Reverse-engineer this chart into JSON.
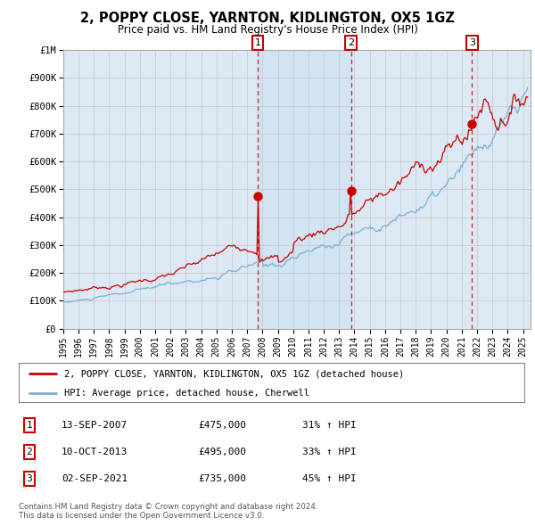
{
  "title": "2, POPPY CLOSE, YARNTON, KIDLINGTON, OX5 1GZ",
  "subtitle": "Price paid vs. HM Land Registry's House Price Index (HPI)",
  "background_color": "#ffffff",
  "plot_bg_color": "#dce9f5",
  "grid_color": "#cccccc",
  "red_line_color": "#cc0000",
  "blue_line_color": "#7bafd4",
  "sale_points": [
    {
      "date_num": 2007.7,
      "price": 475000,
      "label": "1"
    },
    {
      "date_num": 2013.78,
      "price": 495000,
      "label": "2"
    },
    {
      "date_num": 2021.67,
      "price": 735000,
      "label": "3"
    }
  ],
  "sale_annotations": [
    {
      "label": "1",
      "date": "13-SEP-2007",
      "price": "£475,000",
      "hpi": "31% ↑ HPI"
    },
    {
      "label": "2",
      "date": "10-OCT-2013",
      "price": "£495,000",
      "hpi": "33% ↑ HPI"
    },
    {
      "label": "3",
      "date": "02-SEP-2021",
      "price": "£735,000",
      "hpi": "45% ↑ HPI"
    }
  ],
  "legend_red": "2, POPPY CLOSE, YARNTON, KIDLINGTON, OX5 1GZ (detached house)",
  "legend_blue": "HPI: Average price, detached house, Cherwell",
  "footnote": "Contains HM Land Registry data © Crown copyright and database right 2024.\nThis data is licensed under the Open Government Licence v3.0.",
  "ylim": [
    0,
    1000000
  ],
  "xmin": 1995.0,
  "xmax": 2025.5,
  "ytick_vals": [
    0,
    100000,
    200000,
    300000,
    400000,
    500000,
    600000,
    700000,
    800000,
    900000,
    1000000
  ],
  "ytick_labels": [
    "£0",
    "£100K",
    "£200K",
    "£300K",
    "£400K",
    "£500K",
    "£600K",
    "£700K",
    "£800K",
    "£900K",
    "£1M"
  ],
  "xtick_vals": [
    1995,
    1996,
    1997,
    1998,
    1999,
    2000,
    2001,
    2002,
    2003,
    2004,
    2005,
    2006,
    2007,
    2008,
    2009,
    2010,
    2011,
    2012,
    2013,
    2014,
    2015,
    2016,
    2017,
    2018,
    2019,
    2020,
    2021,
    2022,
    2023,
    2024,
    2025
  ]
}
